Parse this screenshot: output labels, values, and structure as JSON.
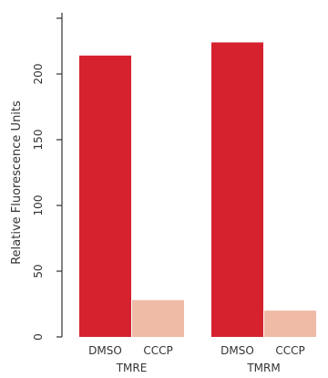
{
  "chart_data": {
    "type": "bar",
    "ylabel": "Relative Fluorescence Units",
    "ylim": [
      0,
      230
    ],
    "yticks": [
      "0",
      "50",
      "100",
      "150",
      "200"
    ],
    "groups": [
      {
        "name": "TMRE",
        "categories": [
          "DMSO",
          "CCCP"
        ],
        "values": [
          214,
          28
        ]
      },
      {
        "name": "TMRM",
        "categories": [
          "DMSO",
          "CCCP"
        ],
        "values": [
          224,
          20
        ]
      }
    ],
    "colors": {
      "DMSO": "#d5222e",
      "CCCP": "#efbaa6"
    }
  }
}
